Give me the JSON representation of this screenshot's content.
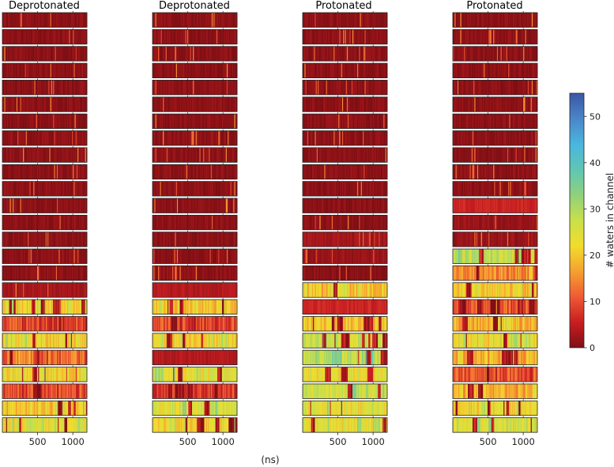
{
  "chart_data": {
    "type": "heatmap",
    "titles": [
      "Deprotonated",
      "Deprotonated",
      "Protonated",
      "Protonated"
    ],
    "x_unit_label": "(ns)",
    "x_ticks": [
      500,
      1000
    ],
    "x_range": [
      0,
      1200
    ],
    "rows_per_panel": 25,
    "colorbar": {
      "label": "# waters in channel",
      "ticks": [
        0,
        10,
        20,
        30,
        40,
        50
      ],
      "range": [
        0,
        55
      ],
      "colormap": [
        "#7f0f14",
        "#c81e22",
        "#ef5a34",
        "#f6a030",
        "#f2dc2c",
        "#c9e04a",
        "#8fd17b",
        "#5fc6b3",
        "#4ab6de",
        "#4a86c8",
        "#3b56a6"
      ]
    },
    "series": [
      {
        "name": "Deprotonated",
        "row_mean_waters": [
          1,
          1,
          1,
          1,
          1,
          1,
          1,
          1,
          1,
          1,
          1,
          1,
          1,
          1,
          1,
          1,
          3,
          22,
          8,
          22,
          12,
          22,
          9,
          20,
          24
        ]
      },
      {
        "name": "Deprotonated",
        "row_mean_waters": [
          1,
          1,
          1,
          1,
          1,
          1,
          1,
          1,
          1,
          1,
          1,
          1,
          1,
          1,
          1,
          1,
          4,
          20,
          9,
          22,
          4,
          24,
          8,
          25,
          22
        ]
      },
      {
        "name": "Protonated",
        "row_mean_waters": [
          1,
          1,
          1,
          1,
          1,
          1,
          1,
          1,
          1,
          1,
          1,
          1,
          1,
          3,
          2,
          1,
          20,
          6,
          20,
          26,
          28,
          24,
          26,
          24,
          24
        ]
      },
      {
        "name": "Protonated",
        "row_mean_waters": [
          1,
          1,
          1,
          1,
          1,
          1,
          1,
          1,
          1,
          1,
          1,
          6,
          2,
          2,
          28,
          15,
          20,
          10,
          18,
          22,
          18,
          10,
          18,
          22,
          26
        ]
      }
    ]
  }
}
